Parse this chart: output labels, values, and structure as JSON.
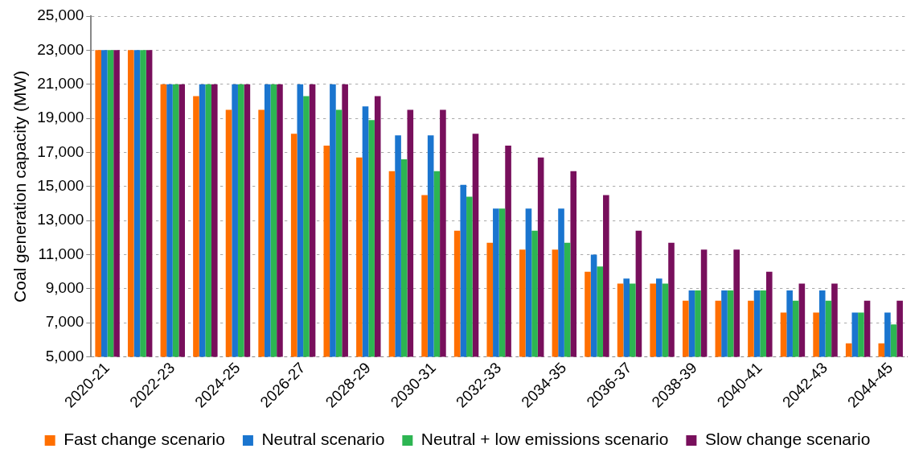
{
  "chart_data": {
    "type": "bar",
    "ylabel": "Coal generation capacity (MW)",
    "categories": [
      "2020-21",
      null,
      "2022-23",
      null,
      "2024-25",
      null,
      "2026-27",
      null,
      "2028-29",
      null,
      "2030-31",
      null,
      "2032-33",
      null,
      "2034-35",
      null,
      "2036-37",
      null,
      "2038-39",
      null,
      "2040-41",
      null,
      "2042-43",
      null,
      "2044-45"
    ],
    "series": [
      {
        "name": "Fast change scenario",
        "color": "#ff6f00",
        "values": [
          23000,
          23000,
          21000,
          20300,
          19500,
          19500,
          18100,
          17400,
          16700,
          15900,
          14500,
          12400,
          11700,
          11300,
          11300,
          10000,
          9300,
          9300,
          8300,
          8300,
          8300,
          7600,
          7600,
          5800,
          5800
        ]
      },
      {
        "name": "Neutral scenario",
        "color": "#1a75cf",
        "values": [
          23000,
          23000,
          21000,
          21000,
          21000,
          21000,
          21000,
          21000,
          19700,
          18000,
          18000,
          15100,
          13700,
          13700,
          13700,
          11000,
          9600,
          9600,
          8900,
          8900,
          8900,
          8900,
          8900,
          7600,
          7600
        ]
      },
      {
        "name": "Neutral + low emissions scenario",
        "color": "#2db552",
        "values": [
          23000,
          23000,
          21000,
          21000,
          21000,
          21000,
          20300,
          19500,
          18900,
          16600,
          15900,
          14400,
          13700,
          12400,
          11700,
          10300,
          9300,
          9300,
          8900,
          8900,
          8900,
          8300,
          8300,
          7600,
          6900
        ]
      },
      {
        "name": "Slow change scenario",
        "color": "#780f5c",
        "values": [
          23000,
          23000,
          21000,
          21000,
          21000,
          21000,
          21000,
          21000,
          20300,
          19500,
          19500,
          18100,
          17400,
          16700,
          15900,
          14500,
          12400,
          11700,
          11300,
          11300,
          10000,
          9300,
          9300,
          8300,
          8300
        ]
      }
    ],
    "ylim": [
      5000,
      25000
    ],
    "yticks": [
      {
        "value": 5000,
        "label": "5,000"
      },
      {
        "value": 7000,
        "label": "7,000"
      },
      {
        "value": 9000,
        "label": "9,000"
      },
      {
        "value": 11000,
        "label": "11,000"
      },
      {
        "value": 13000,
        "label": "13,000"
      },
      {
        "value": 15000,
        "label": "15,000"
      },
      {
        "value": 17000,
        "label": "17,000"
      },
      {
        "value": 19000,
        "label": "19,000"
      },
      {
        "value": 21000,
        "label": "21,000"
      },
      {
        "value": 23000,
        "label": "23,000"
      },
      {
        "value": 25000,
        "label": "25,000"
      }
    ],
    "grid": "y",
    "legend": "bottom"
  }
}
